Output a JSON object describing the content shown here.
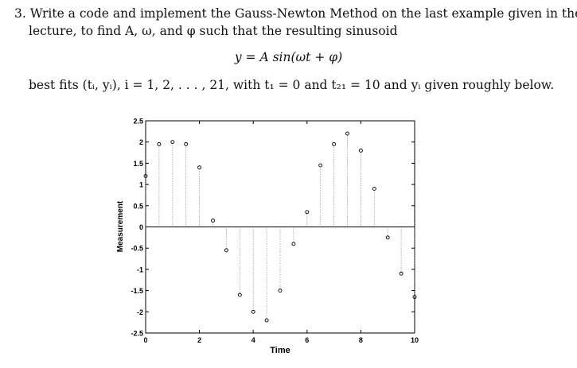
{
  "problem": {
    "number": "3.",
    "line1": "Write a code and implement the Gauss-Newton Method on the last example given in the",
    "line2": "lecture, to find A, ω, and φ such that the resulting sinusoid",
    "equation": "y = A sin(ωt + φ)",
    "best_fits": "best fits (tᵢ, yᵢ), i = 1, 2, . . . , 21, with t₁ = 0 and t₂₁ = 10 and yᵢ given roughly below."
  },
  "chart_data": {
    "type": "scatter",
    "title": "",
    "xlabel": "Time",
    "ylabel": "Measurement",
    "xlim": [
      0,
      10
    ],
    "ylim": [
      -2.5,
      2.5
    ],
    "x_ticks": [
      "0",
      "2",
      "4",
      "6",
      "8",
      "10"
    ],
    "y_ticks": [
      "2.5",
      "2",
      "1.5",
      "1",
      "0.5",
      "0",
      "-0.5",
      "-1",
      "-1.5",
      "-2",
      "-2.5"
    ],
    "grid": false,
    "stem_style": "dotted vertical lines from y=0 to each point",
    "series": [
      {
        "x": [
          0,
          0.5,
          1,
          1.5,
          2,
          2.5,
          3,
          3.5,
          4,
          4.5,
          5,
          5.5,
          6,
          6.5,
          7,
          7.5,
          8,
          8.5,
          9,
          9.5,
          10
        ],
        "y": [
          1.2,
          1.95,
          2.0,
          1.95,
          1.4,
          0.15,
          -0.55,
          -1.6,
          -2.0,
          -2.2,
          -1.5,
          -0.4,
          0.35,
          1.45,
          1.95,
          2.2,
          1.8,
          0.9,
          -0.25,
          -1.1,
          -1.65
        ]
      }
    ]
  }
}
